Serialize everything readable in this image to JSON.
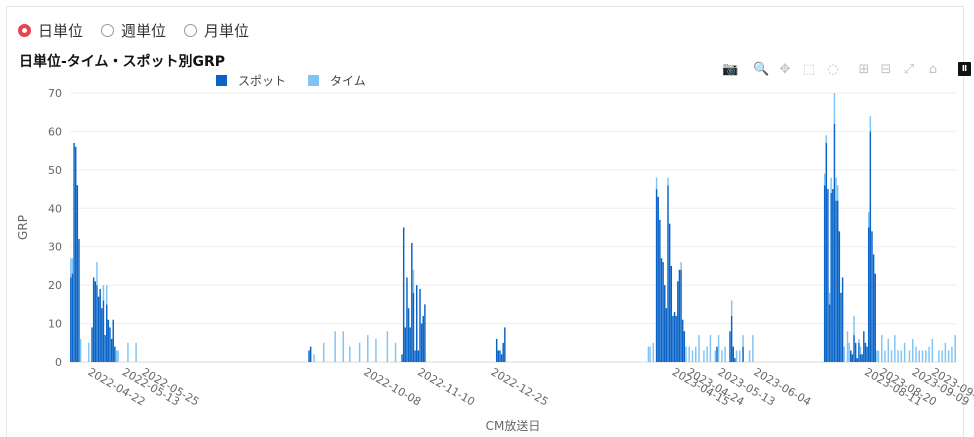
{
  "radio": {
    "options": [
      {
        "label": "日単位",
        "selected": true
      },
      {
        "label": "週単位",
        "selected": false
      },
      {
        "label": "月単位",
        "selected": false
      }
    ]
  },
  "toolbar": {
    "icons": [
      "camera-icon",
      "zoom-icon",
      "pan-icon",
      "box-select-icon",
      "lasso-icon",
      "zoom-in-icon",
      "zoom-out-icon",
      "autoscale-icon",
      "reset-axes-icon",
      "plotly-logo-icon"
    ]
  },
  "colors": {
    "spot": "#0a64c8",
    "time": "#80c4f4",
    "accent": "#e8434f"
  },
  "chart_data": {
    "type": "bar",
    "barmode": "stack",
    "title": "日単位-タイム・スポット別GRP",
    "xlabel": "CM放送日",
    "ylabel": "GRP",
    "ylim": [
      0,
      70
    ],
    "xlim": [
      "2022-04-12",
      "2023-10-06"
    ],
    "yticks": [
      0,
      10,
      20,
      30,
      40,
      50,
      60,
      70
    ],
    "xticks": [
      "2022-04-22",
      "2022-05-13",
      "2022-05-25",
      "2022-10-08",
      "2022-11-10",
      "2022-12-25",
      "2023-04-15",
      "2023-04-24",
      "2023-05-13",
      "2023-06-04",
      "2023-08-11",
      "2023-08-20",
      "2023-09-09",
      "2023-09-21"
    ],
    "legend": [
      "スポット",
      "タイム"
    ],
    "grid": true,
    "legend_position": "top-left",
    "series": [
      {
        "name": "スポット",
        "points": [
          [
            "2022-04-12",
            22
          ],
          [
            "2022-04-13",
            23
          ],
          [
            "2022-04-14",
            57
          ],
          [
            "2022-04-15",
            56
          ],
          [
            "2022-04-16",
            46
          ],
          [
            "2022-04-17",
            32
          ],
          [
            "2022-04-25",
            9
          ],
          [
            "2022-04-26",
            22
          ],
          [
            "2022-04-27",
            21
          ],
          [
            "2022-04-28",
            20
          ],
          [
            "2022-04-29",
            17
          ],
          [
            "2022-04-30",
            19
          ],
          [
            "2022-05-01",
            14
          ],
          [
            "2022-05-02",
            16
          ],
          [
            "2022-05-03",
            7
          ],
          [
            "2022-05-04",
            15
          ],
          [
            "2022-05-05",
            11
          ],
          [
            "2022-05-06",
            9
          ],
          [
            "2022-05-07",
            6
          ],
          [
            "2022-05-08",
            11
          ],
          [
            "2022-05-09",
            4
          ],
          [
            "2022-09-05",
            3
          ],
          [
            "2022-09-06",
            4
          ],
          [
            "2022-11-01",
            2
          ],
          [
            "2022-11-02",
            35
          ],
          [
            "2022-11-03",
            9
          ],
          [
            "2022-11-04",
            22
          ],
          [
            "2022-11-05",
            14
          ],
          [
            "2022-11-06",
            9
          ],
          [
            "2022-11-07",
            31
          ],
          [
            "2022-11-08",
            18
          ],
          [
            "2022-11-09",
            3
          ],
          [
            "2022-11-10",
            20
          ],
          [
            "2022-11-11",
            3
          ],
          [
            "2022-11-12",
            19
          ],
          [
            "2022-11-13",
            10
          ],
          [
            "2022-11-14",
            12
          ],
          [
            "2022-11-15",
            15
          ],
          [
            "2022-12-29",
            6
          ],
          [
            "2022-12-30",
            3
          ],
          [
            "2022-12-31",
            3
          ],
          [
            "2023-01-01",
            2
          ],
          [
            "2023-01-02",
            5
          ],
          [
            "2023-01-03",
            9
          ],
          [
            "2023-04-06",
            45
          ],
          [
            "2023-04-07",
            43
          ],
          [
            "2023-04-08",
            37
          ],
          [
            "2023-04-09",
            27
          ],
          [
            "2023-04-10",
            26
          ],
          [
            "2023-04-11",
            20
          ],
          [
            "2023-04-12",
            14
          ],
          [
            "2023-04-13",
            46
          ],
          [
            "2023-04-14",
            36
          ],
          [
            "2023-04-15",
            25
          ],
          [
            "2023-04-16",
            12
          ],
          [
            "2023-04-17",
            13
          ],
          [
            "2023-04-18",
            12
          ],
          [
            "2023-04-19",
            21
          ],
          [
            "2023-04-20",
            24
          ],
          [
            "2023-04-21",
            24
          ],
          [
            "2023-04-22",
            11
          ],
          [
            "2023-04-23",
            8
          ],
          [
            "2023-05-13",
            4
          ],
          [
            "2023-05-21",
            8
          ],
          [
            "2023-05-22",
            12
          ],
          [
            "2023-05-23",
            4
          ],
          [
            "2023-05-24",
            1
          ],
          [
            "2023-05-29",
            4
          ],
          [
            "2023-07-18",
            46
          ],
          [
            "2023-07-19",
            57
          ],
          [
            "2023-07-20",
            45
          ],
          [
            "2023-07-21",
            15
          ],
          [
            "2023-07-22",
            44
          ],
          [
            "2023-07-23",
            45
          ],
          [
            "2023-07-24",
            62
          ],
          [
            "2023-07-25",
            42
          ],
          [
            "2023-07-26",
            42
          ],
          [
            "2023-07-27",
            34
          ],
          [
            "2023-07-28",
            18
          ],
          [
            "2023-07-29",
            22
          ],
          [
            "2023-08-03",
            3
          ],
          [
            "2023-08-04",
            2
          ],
          [
            "2023-08-05",
            7
          ],
          [
            "2023-08-06",
            5
          ],
          [
            "2023-08-07",
            1
          ],
          [
            "2023-08-08",
            5
          ],
          [
            "2023-08-09",
            2
          ],
          [
            "2023-08-10",
            2
          ],
          [
            "2023-08-11",
            8
          ],
          [
            "2023-08-12",
            5
          ],
          [
            "2023-08-13",
            4
          ],
          [
            "2023-08-14",
            35
          ],
          [
            "2023-08-15",
            60
          ],
          [
            "2023-08-16",
            34
          ],
          [
            "2023-08-17",
            28
          ],
          [
            "2023-08-18",
            23
          ]
        ]
      },
      {
        "name": "タイム",
        "points": [
          [
            "2022-04-12",
            5
          ],
          [
            "2022-04-13",
            4
          ],
          [
            "2022-04-18",
            6
          ],
          [
            "2022-04-23",
            5
          ],
          [
            "2022-04-28",
            6
          ],
          [
            "2022-05-02",
            4
          ],
          [
            "2022-05-04",
            5
          ],
          [
            "2022-05-10",
            3
          ],
          [
            "2022-05-11",
            3
          ],
          [
            "2022-05-17",
            5
          ],
          [
            "2022-05-22",
            5
          ],
          [
            "2022-09-08",
            2
          ],
          [
            "2022-09-14",
            5
          ],
          [
            "2022-09-21",
            8
          ],
          [
            "2022-09-26",
            8
          ],
          [
            "2022-09-30",
            4
          ],
          [
            "2022-10-06",
            5
          ],
          [
            "2022-10-11",
            7
          ],
          [
            "2022-10-16",
            6
          ],
          [
            "2022-10-23",
            8
          ],
          [
            "2022-10-28",
            5
          ],
          [
            "2022-11-08",
            6
          ],
          [
            "2023-04-01",
            4
          ],
          [
            "2023-04-02",
            4
          ],
          [
            "2023-04-04",
            5
          ],
          [
            "2023-04-06",
            3
          ],
          [
            "2023-04-13",
            2
          ],
          [
            "2023-04-21",
            2
          ],
          [
            "2023-04-24",
            4
          ],
          [
            "2023-04-26",
            4
          ],
          [
            "2023-04-28",
            3
          ],
          [
            "2023-04-30",
            4
          ],
          [
            "2023-05-02",
            7
          ],
          [
            "2023-05-05",
            3
          ],
          [
            "2023-05-07",
            4
          ],
          [
            "2023-05-09",
            7
          ],
          [
            "2023-05-12",
            3
          ],
          [
            "2023-05-14",
            7
          ],
          [
            "2023-05-16",
            3
          ],
          [
            "2023-05-18",
            4
          ],
          [
            "2023-05-22",
            4
          ],
          [
            "2023-05-25",
            3
          ],
          [
            "2023-05-27",
            3
          ],
          [
            "2023-05-29",
            3
          ],
          [
            "2023-06-02",
            3
          ],
          [
            "2023-06-04",
            7
          ],
          [
            "2023-07-18",
            3
          ],
          [
            "2023-07-19",
            2
          ],
          [
            "2023-07-21",
            3
          ],
          [
            "2023-07-22",
            4
          ],
          [
            "2023-07-24",
            8
          ],
          [
            "2023-07-25",
            6
          ],
          [
            "2023-07-26",
            4
          ],
          [
            "2023-07-30",
            4
          ],
          [
            "2023-08-01",
            8
          ],
          [
            "2023-08-02",
            5
          ],
          [
            "2023-08-05",
            5
          ],
          [
            "2023-08-08",
            1
          ],
          [
            "2023-08-09",
            2
          ],
          [
            "2023-08-14",
            4
          ],
          [
            "2023-08-15",
            4
          ],
          [
            "2023-08-19",
            3
          ],
          [
            "2023-08-20",
            3
          ],
          [
            "2023-08-22",
            7
          ],
          [
            "2023-08-24",
            3
          ],
          [
            "2023-08-26",
            6
          ],
          [
            "2023-08-28",
            3
          ],
          [
            "2023-08-30",
            7
          ],
          [
            "2023-09-01",
            3
          ],
          [
            "2023-09-03",
            3
          ],
          [
            "2023-09-05",
            5
          ],
          [
            "2023-09-08",
            3
          ],
          [
            "2023-09-10",
            6
          ],
          [
            "2023-09-12",
            4
          ],
          [
            "2023-09-14",
            3
          ],
          [
            "2023-09-16",
            3
          ],
          [
            "2023-09-18",
            3
          ],
          [
            "2023-09-20",
            4
          ],
          [
            "2023-09-22",
            6
          ],
          [
            "2023-09-26",
            3
          ],
          [
            "2023-09-28",
            3
          ],
          [
            "2023-09-30",
            5
          ],
          [
            "2023-10-02",
            3
          ],
          [
            "2023-10-04",
            4
          ],
          [
            "2023-10-06",
            7
          ]
        ]
      }
    ]
  }
}
